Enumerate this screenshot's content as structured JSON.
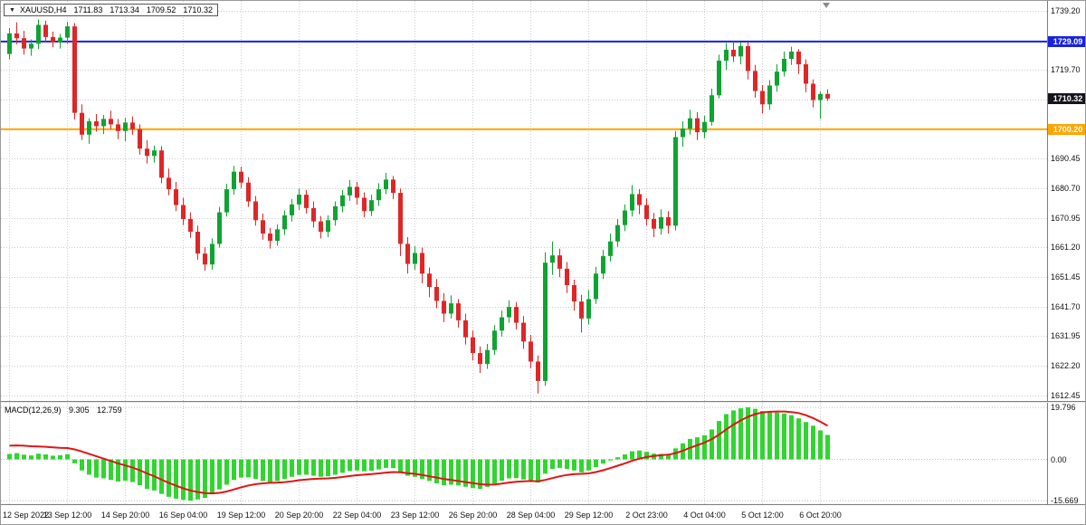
{
  "header": {
    "dropdown_icon": "▼",
    "symbol": "XAUUSD,H4",
    "open": "1711.83",
    "high": "1713.34",
    "low": "1709.52",
    "close": "1710.32"
  },
  "macd_label": {
    "name": "MACD(12,26,9)",
    "main_value": "9.305",
    "signal_value": "12.759"
  },
  "chart_data": {
    "type": "candlestick",
    "symbol": "XAUUSD",
    "timeframe": "H4",
    "current_bar": {
      "open": 1711.83,
      "high": 1713.34,
      "low": 1709.52,
      "close": 1710.32
    },
    "price_range": [
      1610.6,
      1742.5
    ],
    "price_ticks": [
      "1739.20",
      "1729.45",
      "1719.70",
      "1709.95",
      "1700.20",
      "1690.45",
      "1680.70",
      "1670.95",
      "1661.20",
      "1651.45",
      "1641.70",
      "1631.95",
      "1622.20",
      "1612.45"
    ],
    "hlines": [
      {
        "price": 1729.09,
        "label": "1729.09",
        "color": "#1822dd",
        "line": true,
        "width": 2
      },
      {
        "price": 1710.32,
        "label": "1710.32",
        "color": "#15151f",
        "line": false,
        "width": 0
      },
      {
        "price": 1700.2,
        "label": "1700.20",
        "color": "#ffa500",
        "line": true,
        "width": 2
      }
    ],
    "time_labels": [
      "12 Sep 2022",
      "13 Sep 12:00",
      "14 Sep 20:00",
      "16 Sep 04:00",
      "19 Sep 12:00",
      "20 Sep 20:00",
      "22 Sep 04:00",
      "23 Sep 12:00",
      "26 Sep 20:00",
      "28 Sep 04:00",
      "29 Sep 12:00",
      "2 Oct 23:00",
      "4 Oct 04:00",
      "5 Oct 12:00",
      "6 Oct 20:00"
    ],
    "label_every_n_bars": 8,
    "candles": [
      [
        1725.0,
        1733.6,
        1723.2,
        1731.8
      ],
      [
        1731.8,
        1735.4,
        1728.2,
        1730.2
      ],
      [
        1730.2,
        1732.6,
        1724.8,
        1726.8
      ],
      [
        1726.8,
        1729.8,
        1724.4,
        1728.4
      ],
      [
        1728.4,
        1736.4,
        1726.6,
        1734.6
      ],
      [
        1734.6,
        1736.0,
        1728.8,
        1730.6
      ],
      [
        1730.6,
        1732.4,
        1727.2,
        1728.8
      ],
      [
        1728.8,
        1731.6,
        1726.8,
        1730.4
      ],
      [
        1730.4,
        1735.6,
        1728.4,
        1734.1
      ],
      [
        1734.1,
        1735.2,
        1703.4,
        1705.6
      ],
      [
        1705.6,
        1708.4,
        1696.6,
        1698.4
      ],
      [
        1698.4,
        1703.8,
        1695.4,
        1702.8
      ],
      [
        1702.8,
        1705.2,
        1699.4,
        1701.2
      ],
      [
        1701.2,
        1704.9,
        1698.6,
        1703.6
      ],
      [
        1703.6,
        1706.3,
        1700.2,
        1701.8
      ],
      [
        1701.8,
        1703.6,
        1696.9,
        1699.6
      ],
      [
        1699.6,
        1703.9,
        1696.2,
        1702.4
      ],
      [
        1702.4,
        1704.4,
        1698.4,
        1700.2
      ],
      [
        1700.2,
        1701.8,
        1691.8,
        1693.8
      ],
      [
        1693.8,
        1696.6,
        1688.9,
        1691.4
      ],
      [
        1691.4,
        1694.8,
        1689.2,
        1693.2
      ],
      [
        1693.2,
        1694.6,
        1682.4,
        1684.2
      ],
      [
        1684.2,
        1687.2,
        1678.4,
        1680.4
      ],
      [
        1680.4,
        1682.8,
        1673.2,
        1675.2
      ],
      [
        1675.2,
        1677.6,
        1668.6,
        1670.6
      ],
      [
        1670.6,
        1672.8,
        1664.4,
        1666.4
      ],
      [
        1666.4,
        1668.4,
        1657.2,
        1659.2
      ],
      [
        1659.2,
        1661.4,
        1653.6,
        1655.6
      ],
      [
        1655.6,
        1664.2,
        1653.9,
        1662.4
      ],
      [
        1662.4,
        1674.6,
        1661.2,
        1672.8
      ],
      [
        1672.8,
        1682.2,
        1671.4,
        1680.4
      ],
      [
        1680.4,
        1688.1,
        1678.6,
        1686.2
      ],
      [
        1686.2,
        1687.8,
        1680.8,
        1682.6
      ],
      [
        1682.6,
        1684.4,
        1674.6,
        1676.4
      ],
      [
        1676.4,
        1678.2,
        1668.4,
        1670.2
      ],
      [
        1670.2,
        1672.4,
        1663.8,
        1665.8
      ],
      [
        1665.8,
        1667.6,
        1660.9,
        1663.4
      ],
      [
        1663.4,
        1668.8,
        1661.8,
        1667.2
      ],
      [
        1667.2,
        1673.4,
        1665.4,
        1671.8
      ],
      [
        1671.8,
        1677.2,
        1669.8,
        1675.4
      ],
      [
        1675.4,
        1680.6,
        1673.6,
        1678.6
      ],
      [
        1678.6,
        1680.2,
        1672.4,
        1674.2
      ],
      [
        1674.2,
        1676.4,
        1667.8,
        1669.8
      ],
      [
        1669.8,
        1671.6,
        1664.2,
        1666.4
      ],
      [
        1666.4,
        1671.8,
        1664.6,
        1670.2
      ],
      [
        1670.2,
        1676.4,
        1668.4,
        1674.8
      ],
      [
        1674.8,
        1680.2,
        1672.8,
        1678.4
      ],
      [
        1678.4,
        1683.4,
        1676.6,
        1681.2
      ],
      [
        1681.2,
        1682.8,
        1675.4,
        1677.6
      ],
      [
        1677.6,
        1679.4,
        1671.2,
        1673.2
      ],
      [
        1673.2,
        1678.6,
        1671.6,
        1676.8
      ],
      [
        1676.8,
        1682.4,
        1674.9,
        1680.4
      ],
      [
        1680.4,
        1685.8,
        1678.8,
        1683.6
      ],
      [
        1683.6,
        1684.8,
        1677.2,
        1679.2
      ],
      [
        1679.2,
        1680.6,
        1658.4,
        1662.4
      ],
      [
        1662.4,
        1664.6,
        1652.6,
        1655.8
      ],
      [
        1655.8,
        1661.6,
        1653.8,
        1659.4
      ],
      [
        1659.4,
        1661.2,
        1649.4,
        1652.6
      ],
      [
        1652.6,
        1654.6,
        1644.8,
        1648.2
      ],
      [
        1648.2,
        1650.8,
        1641.2,
        1643.6
      ],
      [
        1643.6,
        1646.2,
        1636.6,
        1639.4
      ],
      [
        1639.4,
        1645.4,
        1637.8,
        1642.8
      ],
      [
        1642.8,
        1644.2,
        1634.8,
        1637.2
      ],
      [
        1637.2,
        1639.4,
        1629.2,
        1631.6
      ],
      [
        1631.6,
        1633.8,
        1623.9,
        1626.4
      ],
      [
        1626.4,
        1628.6,
        1619.8,
        1622.8
      ],
      [
        1622.8,
        1629.4,
        1621.2,
        1627.4
      ],
      [
        1627.4,
        1635.6,
        1625.8,
        1633.8
      ],
      [
        1633.8,
        1640.4,
        1631.9,
        1638.2
      ],
      [
        1638.2,
        1643.8,
        1636.4,
        1641.6
      ],
      [
        1641.6,
        1643.2,
        1634.2,
        1636.4
      ],
      [
        1636.4,
        1638.6,
        1627.8,
        1630.2
      ],
      [
        1630.2,
        1632.4,
        1621.4,
        1623.6
      ],
      [
        1623.6,
        1625.6,
        1613.1,
        1617.2
      ],
      [
        1617.2,
        1659.6,
        1615.6,
        1656.2
      ],
      [
        1656.2,
        1663.2,
        1652.2,
        1658.6
      ],
      [
        1658.6,
        1660.8,
        1651.4,
        1654.2
      ],
      [
        1654.2,
        1656.4,
        1646.2,
        1648.8
      ],
      [
        1648.8,
        1650.6,
        1640.4,
        1643.4
      ],
      [
        1643.4,
        1645.6,
        1633.2,
        1637.8
      ],
      [
        1637.8,
        1647.2,
        1635.8,
        1644.2
      ],
      [
        1644.2,
        1654.8,
        1642.6,
        1652.6
      ],
      [
        1652.6,
        1660.4,
        1650.8,
        1658.4
      ],
      [
        1658.4,
        1665.8,
        1656.6,
        1663.2
      ],
      [
        1663.2,
        1670.6,
        1661.4,
        1668.6
      ],
      [
        1668.6,
        1675.4,
        1666.6,
        1673.4
      ],
      [
        1673.4,
        1681.8,
        1671.4,
        1678.8
      ],
      [
        1678.8,
        1680.4,
        1672.2,
        1675.2
      ],
      [
        1675.2,
        1677.4,
        1668.4,
        1670.6
      ],
      [
        1670.6,
        1672.6,
        1664.6,
        1667.4
      ],
      [
        1667.4,
        1673.8,
        1665.4,
        1671.2
      ],
      [
        1671.2,
        1673.2,
        1665.8,
        1668.4
      ],
      [
        1668.4,
        1699.6,
        1666.8,
        1697.6
      ],
      [
        1697.6,
        1702.8,
        1694.4,
        1700.4
      ],
      [
        1700.4,
        1706.6,
        1698.4,
        1703.8
      ],
      [
        1703.8,
        1705.8,
        1696.6,
        1699.2
      ],
      [
        1699.2,
        1704.6,
        1697.2,
        1702.6
      ],
      [
        1702.6,
        1713.6,
        1701.4,
        1711.4
      ],
      [
        1711.4,
        1724.8,
        1710.4,
        1722.8
      ],
      [
        1722.8,
        1728.6,
        1719.8,
        1726.4
      ],
      [
        1726.4,
        1729.1,
        1722.4,
        1724.2
      ],
      [
        1724.2,
        1728.9,
        1721.6,
        1727.6
      ],
      [
        1727.6,
        1728.8,
        1716.6,
        1719.4
      ],
      [
        1719.4,
        1721.4,
        1710.6,
        1712.8
      ],
      [
        1712.8,
        1714.8,
        1705.4,
        1708.4
      ],
      [
        1708.4,
        1716.4,
        1706.6,
        1714.6
      ],
      [
        1714.6,
        1721.6,
        1712.6,
        1719.2
      ],
      [
        1719.2,
        1725.8,
        1717.6,
        1723.4
      ],
      [
        1723.4,
        1727.4,
        1721.4,
        1725.8
      ],
      [
        1725.8,
        1726.6,
        1718.4,
        1721.6
      ],
      [
        1721.6,
        1723.2,
        1712.4,
        1715.2
      ],
      [
        1715.2,
        1716.6,
        1707.4,
        1709.8
      ],
      [
        1709.8,
        1712.6,
        1703.6,
        1711.83
      ],
      [
        1711.83,
        1713.34,
        1709.52,
        1710.32
      ]
    ],
    "macd": {
      "params": [
        12,
        26,
        9
      ],
      "range": [
        -17,
        21.5
      ],
      "ticks": [
        19.796,
        0,
        -15.669
      ],
      "tick_labels": [
        "19.796",
        "0.00",
        "-15.669"
      ],
      "histogram": [
        2.1,
        2.4,
        1.8,
        1.5,
        2.2,
        1.9,
        1.4,
        1.6,
        2.0,
        -1.5,
        -4.2,
        -5.8,
        -6.9,
        -7.2,
        -7.8,
        -8.4,
        -8.1,
        -8.6,
        -9.8,
        -11.2,
        -11.8,
        -13.1,
        -14.2,
        -14.9,
        -15.4,
        -15.669,
        -15.2,
        -14.6,
        -13.2,
        -11.4,
        -9.6,
        -7.8,
        -6.9,
        -6.8,
        -7.4,
        -8.2,
        -8.6,
        -8.2,
        -7.4,
        -6.6,
        -5.9,
        -5.8,
        -6.2,
        -6.6,
        -6.4,
        -5.8,
        -5.1,
        -4.4,
        -4.2,
        -4.5,
        -4.3,
        -3.8,
        -3.2,
        -3.3,
        -4.8,
        -6.2,
        -6.6,
        -7.4,
        -8.2,
        -9.1,
        -9.8,
        -9.6,
        -9.9,
        -10.4,
        -10.9,
        -11.2,
        -10.4,
        -9.2,
        -8.1,
        -7.2,
        -7.1,
        -7.6,
        -8.2,
        -8.8,
        -5.4,
        -3.6,
        -3.2,
        -3.6,
        -4.2,
        -4.9,
        -4.2,
        -2.9,
        -1.6,
        -0.4,
        0.8,
        1.9,
        3.1,
        3.4,
        2.9,
        2.2,
        2.1,
        1.8,
        4.2,
        6.1,
        7.8,
        8.4,
        9.2,
        11.4,
        14.6,
        17.2,
        18.6,
        19.4,
        19.796,
        19.2,
        18.4,
        18.0,
        17.8,
        17.4,
        16.8,
        15.6,
        14.2,
        12.8,
        11.0,
        9.305
      ],
      "signal": [
        5.2,
        5.3,
        5.2,
        5.0,
        4.9,
        4.8,
        4.6,
        4.4,
        4.3,
        3.8,
        3.0,
        2.1,
        1.2,
        0.3,
        -0.6,
        -1.5,
        -2.3,
        -3.1,
        -4.1,
        -5.3,
        -6.4,
        -7.7,
        -8.9,
        -10.0,
        -11.0,
        -11.8,
        -12.4,
        -12.8,
        -12.9,
        -12.7,
        -12.2,
        -11.4,
        -10.6,
        -9.9,
        -9.4,
        -9.1,
        -8.9,
        -8.8,
        -8.6,
        -8.3,
        -7.9,
        -7.6,
        -7.4,
        -7.3,
        -7.2,
        -7.0,
        -6.7,
        -6.3,
        -6.0,
        -5.8,
        -5.6,
        -5.3,
        -5.0,
        -4.8,
        -4.9,
        -5.2,
        -5.5,
        -5.9,
        -6.4,
        -6.9,
        -7.4,
        -7.8,
        -8.2,
        -8.6,
        -9.0,
        -9.4,
        -9.6,
        -9.5,
        -9.2,
        -8.8,
        -8.5,
        -8.3,
        -8.2,
        -8.3,
        -7.8,
        -7.1,
        -6.4,
        -5.9,
        -5.6,
        -5.5,
        -5.3,
        -4.8,
        -4.1,
        -3.3,
        -2.4,
        -1.5,
        -0.5,
        0.3,
        0.9,
        1.3,
        1.6,
        1.8,
        2.4,
        3.3,
        4.4,
        5.4,
        6.4,
        7.7,
        9.4,
        11.4,
        13.2,
        14.8,
        16.2,
        17.2,
        17.8,
        18.1,
        18.2,
        18.2,
        18.0,
        17.6,
        16.8,
        15.7,
        14.3,
        12.759
      ],
      "colors": {
        "histogram": "#30d530",
        "signal": "#e01515"
      }
    },
    "colors": {
      "up": "#0fa332",
      "down": "#df2626",
      "grid": "#cccccc",
      "background": "#ffffff"
    }
  }
}
